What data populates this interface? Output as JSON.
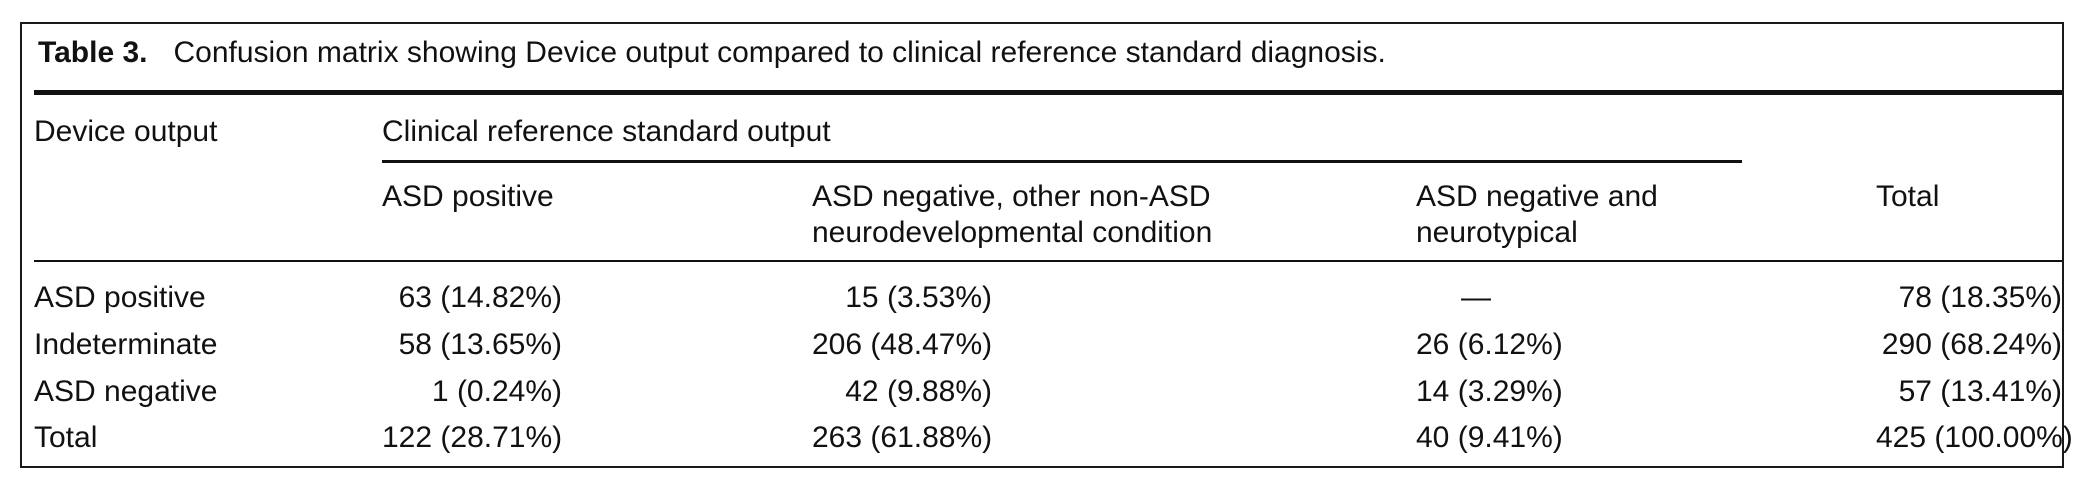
{
  "caption": {
    "label": "Table 3.",
    "text": "Confusion matrix showing Device output compared to clinical reference standard diagnosis."
  },
  "header": {
    "row_header": "Device output",
    "group_header": "Clinical reference standard output",
    "columns": [
      "ASD positive",
      "ASD negative, other non-ASD neurodevelopmental condition",
      "ASD negative and neurotypical",
      "Total"
    ]
  },
  "rows": [
    {
      "label": "ASD positive",
      "cells": [
        "63 (14.82%)",
        "15 (3.53%)",
        "—",
        "78 (18.35%)"
      ]
    },
    {
      "label": "Indeterminate",
      "cells": [
        "58 (13.65%)",
        "206 (48.47%)",
        "26 (6.12%)",
        "290 (68.24%)"
      ]
    },
    {
      "label": "ASD negative",
      "cells": [
        "1 (0.24%)",
        "42 (9.88%)",
        "14 (3.29%)",
        "57 (13.41%)"
      ]
    },
    {
      "label": "Total",
      "cells": [
        "122 (28.71%)",
        "263 (61.88%)",
        "40 (9.41%)",
        "425 (100.00%)"
      ]
    }
  ]
}
